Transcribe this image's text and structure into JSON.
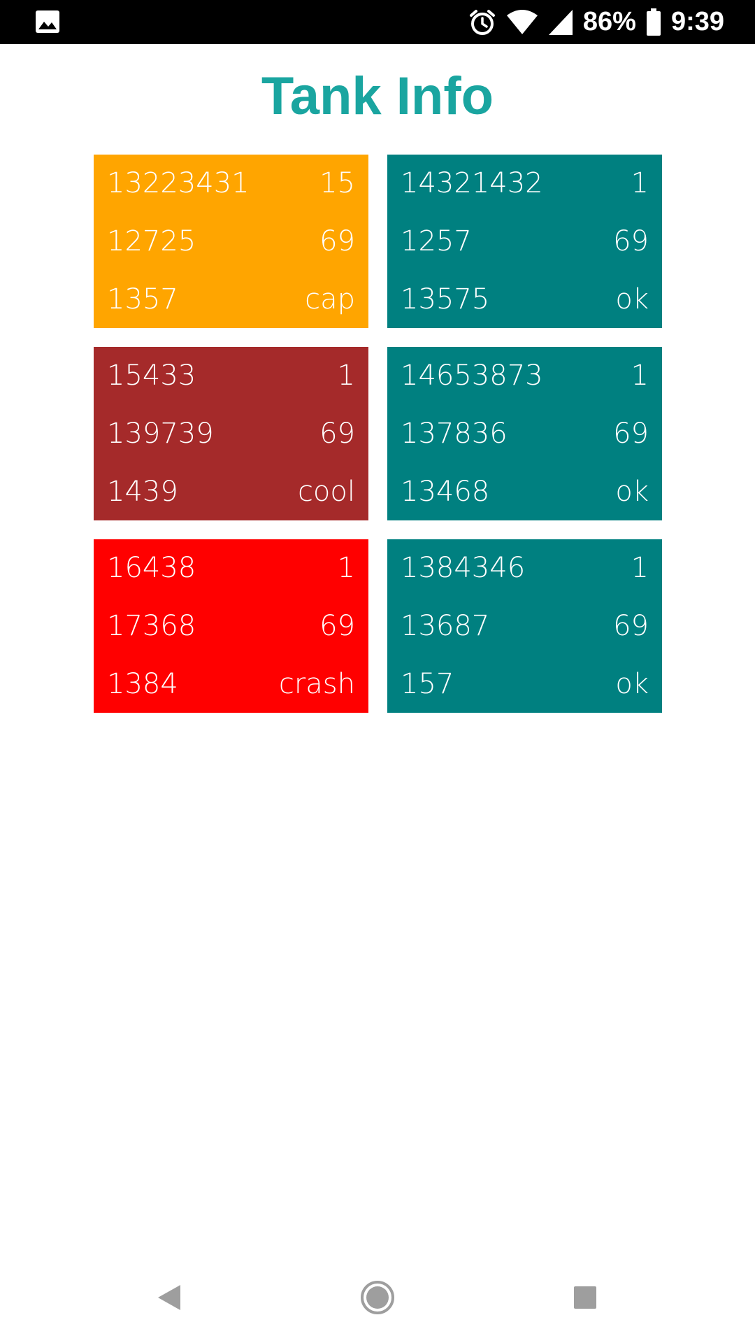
{
  "status_bar": {
    "icons": [
      "image-icon",
      "alarm-icon",
      "wifi-icon",
      "signal-icon",
      "battery-icon"
    ],
    "battery": "86%",
    "time": "9:39"
  },
  "title": "Tank Info",
  "colors": {
    "title": "#1aa5a0",
    "cap": "#ffa500",
    "cool": "#a52a2a",
    "crash": "#ff0000",
    "ok": "#008080",
    "nav_icon": "#9e9e9e"
  },
  "tanks": [
    {
      "rows": [
        [
          "13223431",
          "15"
        ],
        [
          "12725",
          "69"
        ],
        [
          "1357",
          "cap"
        ]
      ],
      "status": "cap"
    },
    {
      "rows": [
        [
          "14321432",
          "1"
        ],
        [
          "1257",
          "69"
        ],
        [
          "13575",
          "ok"
        ]
      ],
      "status": "ok"
    },
    {
      "rows": [
        [
          "15433",
          "1"
        ],
        [
          "139739",
          "69"
        ],
        [
          "1439",
          "cool"
        ]
      ],
      "status": "cool"
    },
    {
      "rows": [
        [
          "14653873",
          "1"
        ],
        [
          "137836",
          "69"
        ],
        [
          "13468",
          "ok"
        ]
      ],
      "status": "ok"
    },
    {
      "rows": [
        [
          "16438",
          "1"
        ],
        [
          "17368",
          "69"
        ],
        [
          "1384",
          "crash"
        ]
      ],
      "status": "crash"
    },
    {
      "rows": [
        [
          "1384346",
          "1"
        ],
        [
          "13687",
          "69"
        ],
        [
          "157",
          "ok"
        ]
      ],
      "status": "ok"
    }
  ],
  "nav": {
    "icons": [
      "back-icon",
      "home-icon",
      "recents-icon"
    ]
  }
}
